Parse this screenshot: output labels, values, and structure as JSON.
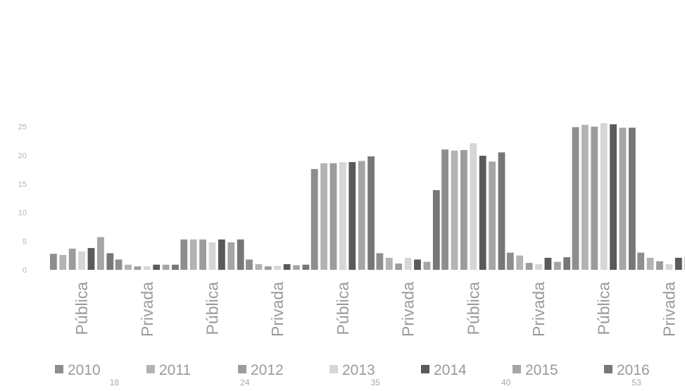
{
  "chart_data": {
    "type": "bar",
    "title": "",
    "xlabel": "",
    "ylabel": "",
    "ylim": [
      0,
      45
    ],
    "yticks": [
      0,
      5,
      10,
      15,
      20,
      25
    ],
    "ytick_labels": [
      "0",
      "5",
      "10",
      "15",
      "20",
      "25"
    ],
    "grid": false,
    "legend_position": "bottom",
    "categories": [
      "Pública",
      "Privada",
      "Pública",
      "Privada",
      "Pública",
      "Privada",
      "Pública",
      "Privada",
      "Pública",
      "Privada"
    ],
    "groups": [
      {
        "label": "18",
        "span": [
          0,
          1
        ]
      },
      {
        "label": "24",
        "span": [
          2,
          3
        ]
      },
      {
        "label": "35",
        "span": [
          4,
          5
        ]
      },
      {
        "label": "40",
        "span": [
          6,
          7
        ]
      },
      {
        "label": "53",
        "span": [
          8,
          9
        ]
      }
    ],
    "series": [
      {
        "name": "2010",
        "color": "#8e8e8e",
        "values": [
          2.8,
          1.8,
          5.3,
          1.8,
          17.6,
          2.9,
          21.0,
          3.0,
          24.9,
          3.0
        ]
      },
      {
        "name": "2011",
        "color": "#b3b3b3",
        "values": [
          2.6,
          0.9,
          5.3,
          1.0,
          18.6,
          2.1,
          20.8,
          2.5,
          25.3,
          2.1
        ]
      },
      {
        "name": "2012",
        "color": "#9c9c9c",
        "values": [
          3.7,
          0.6,
          5.3,
          0.6,
          18.6,
          1.1,
          20.9,
          1.2,
          25.0,
          1.5
        ]
      },
      {
        "name": "2013",
        "color": "#d6d6d6",
        "values": [
          3.2,
          0.6,
          4.8,
          0.7,
          18.8,
          2.1,
          22.1,
          1.0,
          25.6,
          1.0
        ]
      },
      {
        "name": "2014",
        "color": "#5a5a5a",
        "values": [
          3.8,
          0.9,
          5.3,
          1.0,
          18.8,
          1.8,
          19.9,
          2.1,
          25.4,
          2.1
        ]
      },
      {
        "name": "2015",
        "color": "#a5a5a5",
        "values": [
          5.7,
          0.9,
          4.8,
          0.8,
          19.0,
          1.4,
          18.9,
          1.4,
          24.8,
          2.3
        ]
      },
      {
        "name": "2016",
        "color": "#777777",
        "values": [
          2.9,
          0.9,
          5.3,
          0.9,
          19.8,
          13.9,
          20.5,
          2.2,
          24.8,
          2.3
        ]
      }
    ]
  }
}
